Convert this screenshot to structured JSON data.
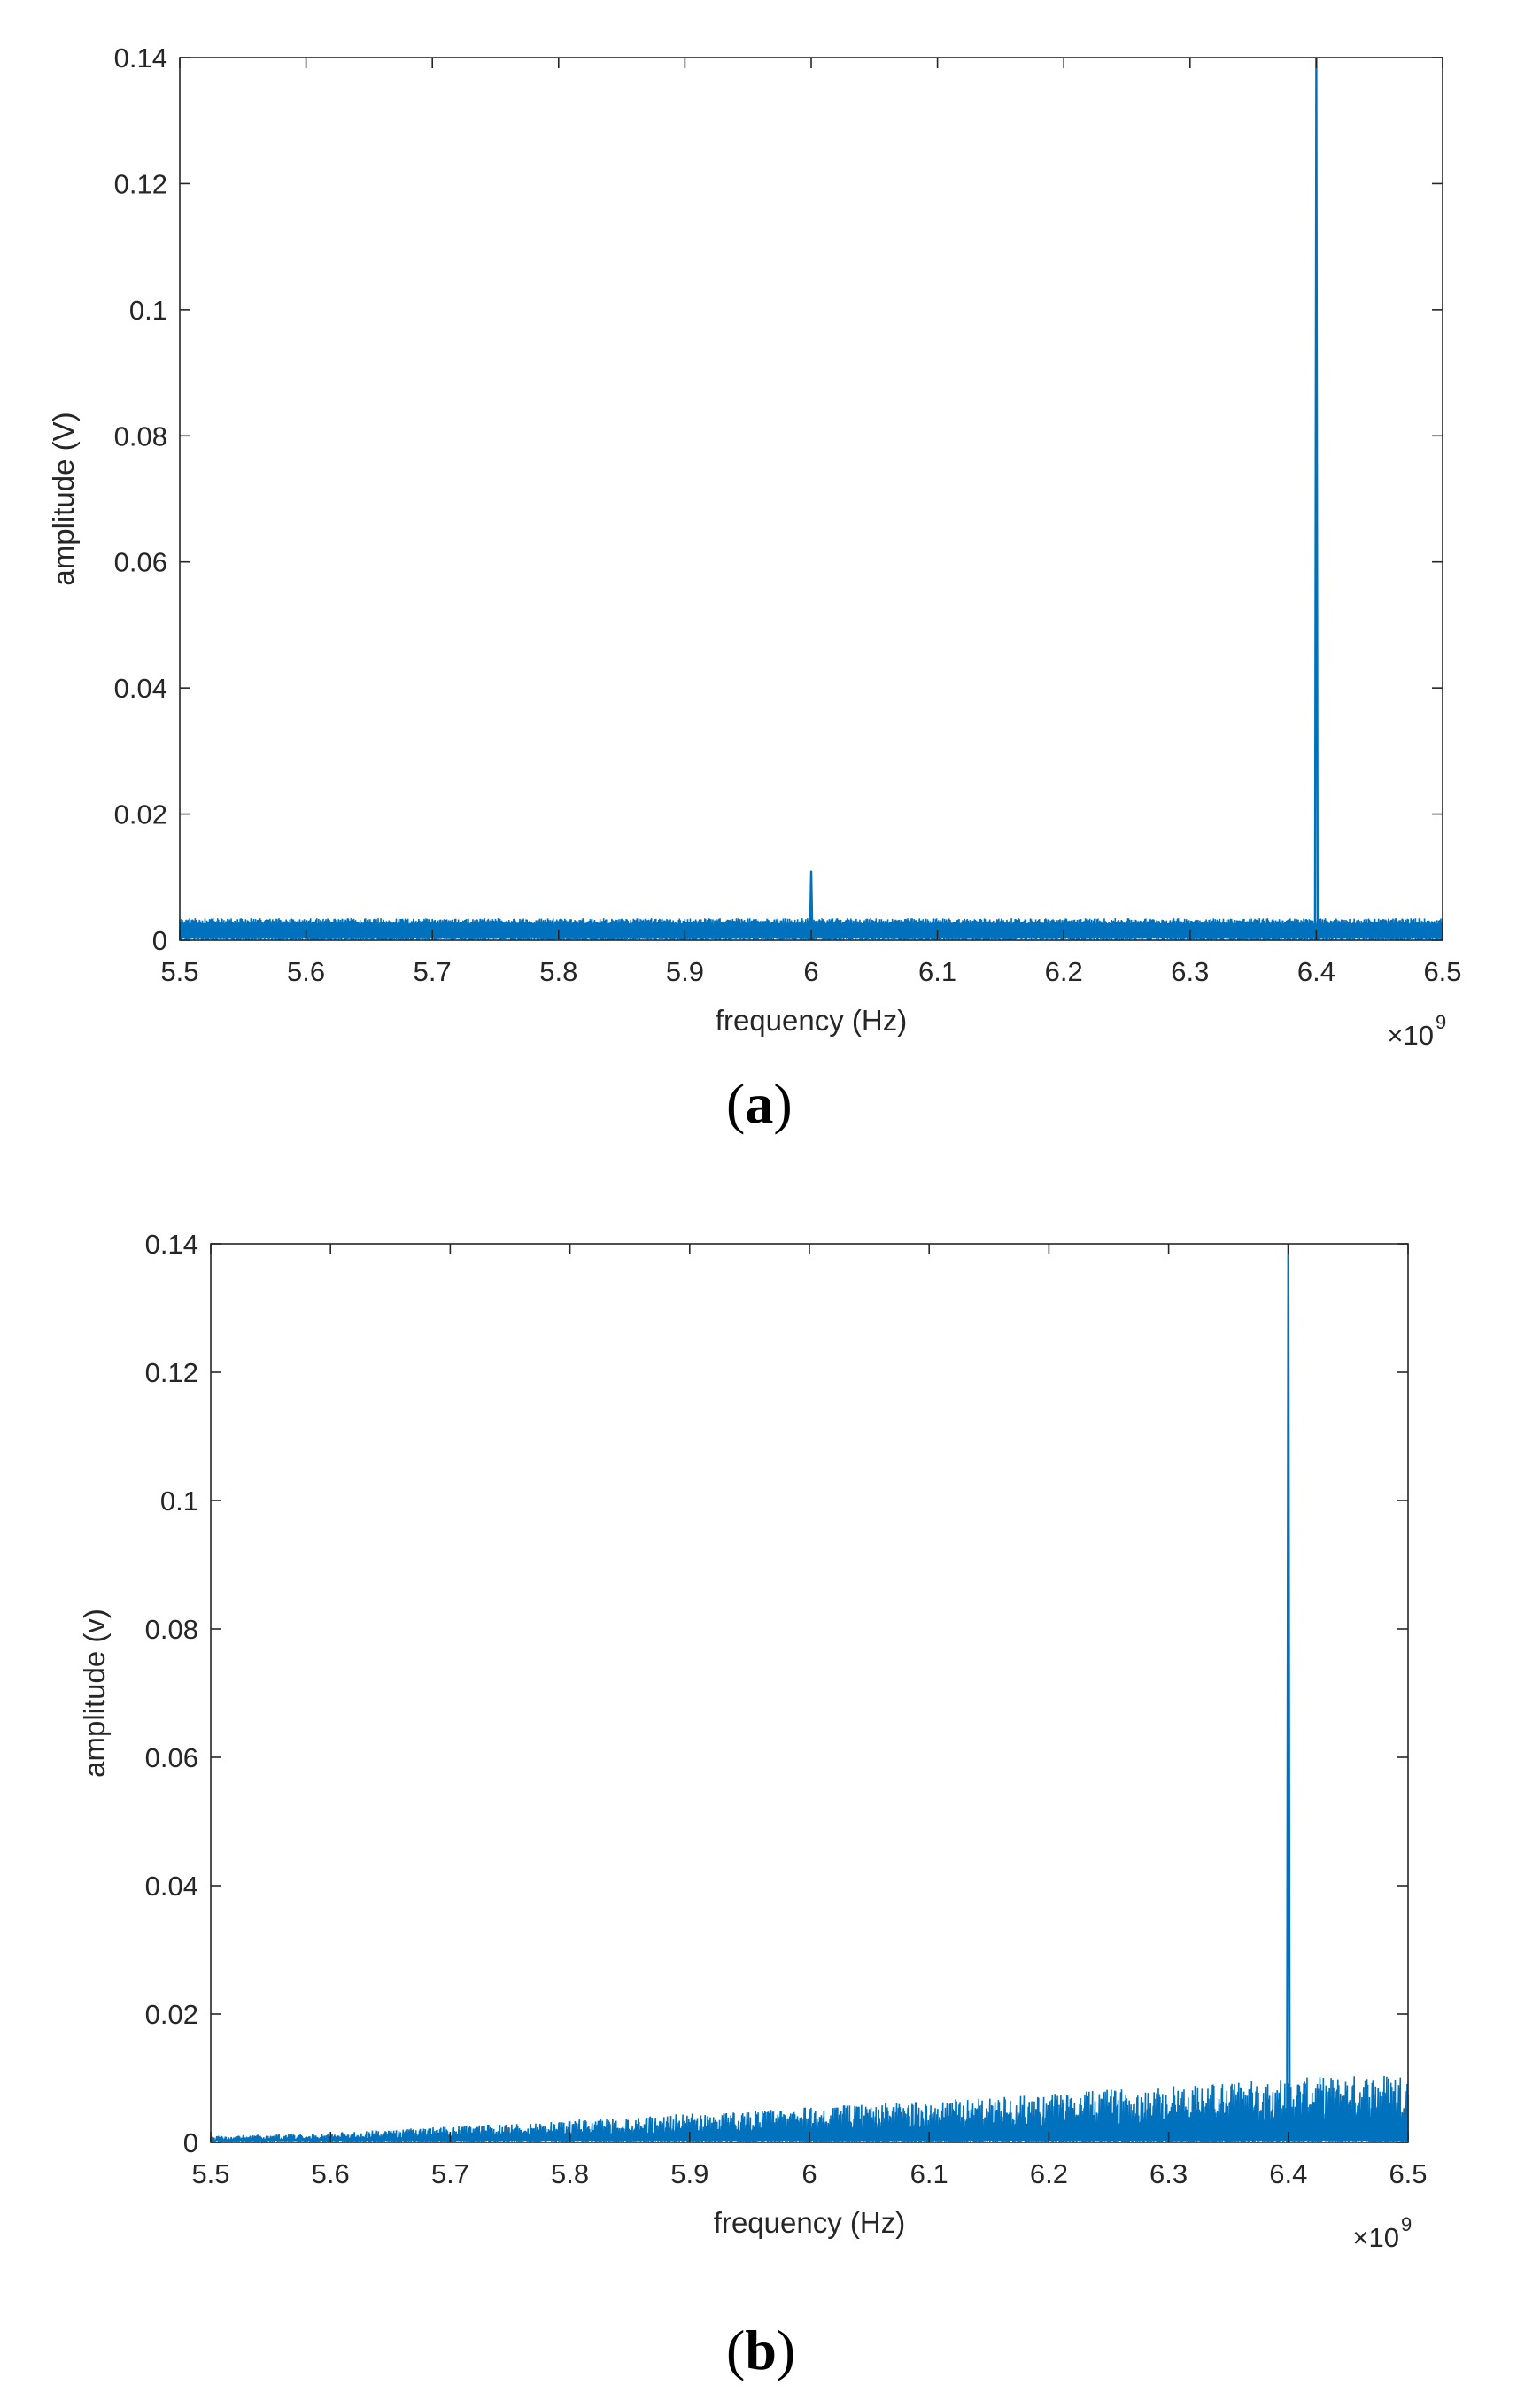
{
  "chart_data": [
    {
      "type": "line",
      "panel_label": "a",
      "xlabel": "frequency (Hz)",
      "ylabel": "amplitude (V)",
      "x_exponent_prefix": "×10",
      "x_exponent_power": "9",
      "xlim": [
        5.5,
        6.5
      ],
      "ylim": [
        0,
        0.14
      ],
      "x_ticks": [
        5.5,
        5.6,
        5.7,
        5.8,
        5.9,
        6,
        6.1,
        6.2,
        6.3,
        6.4,
        6.5
      ],
      "y_ticks": [
        0,
        0.02,
        0.04,
        0.06,
        0.08,
        0.1,
        0.12,
        0.14
      ],
      "line_color": "#0072BD",
      "grid": false,
      "series": [
        {
          "noise_floor": {
            "x_range": [
              5.5,
              6.5
            ],
            "min": 0.0,
            "max": 0.0035
          },
          "peaks": [
            {
              "x": 5.731,
              "y": 0.0012
            },
            {
              "x": 6.0,
              "y": 0.011
            },
            {
              "x": 6.4,
              "y": 0.14
            }
          ]
        }
      ]
    },
    {
      "type": "line",
      "panel_label": "b",
      "xlabel": "frequency (Hz)",
      "ylabel": "amplitude (v)",
      "x_exponent_prefix": "×10",
      "x_exponent_power": "9",
      "xlim": [
        5.5,
        6.5
      ],
      "ylim": [
        0,
        0.14
      ],
      "x_ticks": [
        5.5,
        5.6,
        5.7,
        5.8,
        5.9,
        6,
        6.1,
        6.2,
        6.3,
        6.4,
        6.5
      ],
      "y_ticks": [
        0,
        0.02,
        0.04,
        0.06,
        0.08,
        0.1,
        0.12,
        0.14
      ],
      "line_color": "#0072BD",
      "grid": false,
      "series": [
        {
          "noise_envelope": [
            {
              "x": 5.5,
              "max": 0.001
            },
            {
              "x": 5.6,
              "max": 0.0015
            },
            {
              "x": 5.7,
              "max": 0.0025
            },
            {
              "x": 5.8,
              "max": 0.0035
            },
            {
              "x": 5.9,
              "max": 0.0045
            },
            {
              "x": 6.0,
              "max": 0.0055
            },
            {
              "x": 6.1,
              "max": 0.0065
            },
            {
              "x": 6.2,
              "max": 0.0075
            },
            {
              "x": 6.3,
              "max": 0.009
            },
            {
              "x": 6.4,
              "max": 0.01
            },
            {
              "x": 6.5,
              "max": 0.011
            }
          ],
          "peaks": [
            {
              "x": 6.4,
              "y": 0.14
            }
          ]
        }
      ]
    }
  ]
}
